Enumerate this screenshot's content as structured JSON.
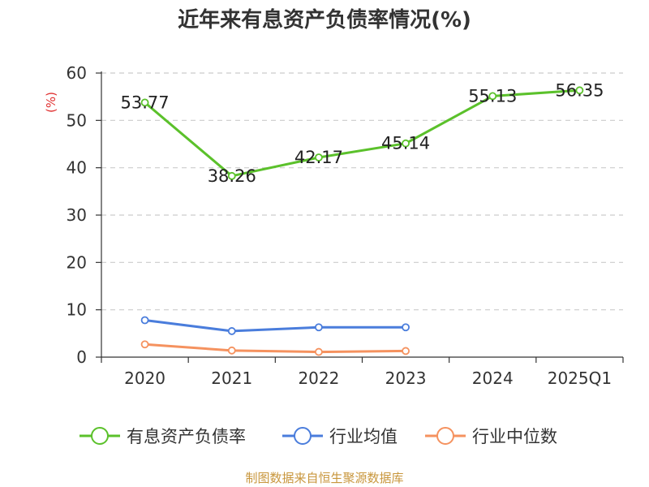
{
  "chart_data": {
    "type": "line",
    "title": "近年来有息资产负债率情况(%)",
    "ylabel": "(%)",
    "categories": [
      "2020",
      "2021",
      "2022",
      "2023",
      "2024",
      "2025Q1"
    ],
    "ylim": [
      0,
      60
    ],
    "yticks": [
      0,
      10,
      20,
      30,
      40,
      50,
      60
    ],
    "grid": true,
    "legend_position": "bottom",
    "series": [
      {
        "name": "有息资产负债率",
        "color": "#5bc12b",
        "values": [
          53.77,
          38.26,
          42.17,
          45.14,
          55.13,
          56.35
        ],
        "labels": [
          "53.77",
          "38.26",
          "42.17",
          "45.14",
          "55.13",
          "56.35"
        ]
      },
      {
        "name": "行业均值",
        "color": "#4a7ddc",
        "values": [
          7.8,
          5.5,
          6.3,
          6.3,
          null,
          null
        ]
      },
      {
        "name": "行业中位数",
        "color": "#f5925f",
        "values": [
          2.7,
          1.4,
          1.1,
          1.3,
          null,
          null
        ]
      }
    ],
    "source": "制图数据来自恒生聚源数据库"
  }
}
